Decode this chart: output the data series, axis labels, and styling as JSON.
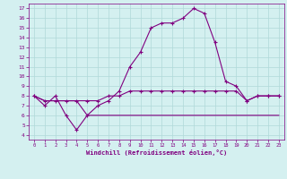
{
  "xlabel": "Windchill (Refroidissement éolien,°C)",
  "hours": [
    0,
    1,
    2,
    3,
    4,
    5,
    6,
    7,
    8,
    9,
    10,
    11,
    12,
    13,
    14,
    15,
    16,
    17,
    18,
    19,
    20,
    21,
    22,
    23
  ],
  "line1": [
    8,
    7,
    8,
    6,
    4.5,
    6,
    7,
    7.5,
    8.5,
    11,
    12.5,
    15,
    15.5,
    15.5,
    16,
    17,
    16.5,
    13.5,
    9.5,
    9,
    7.5,
    8,
    8,
    8
  ],
  "line2": [
    8,
    7.5,
    7.5,
    7.5,
    7.5,
    7.5,
    7.5,
    8,
    8,
    8.5,
    8.5,
    8.5,
    8.5,
    8.5,
    8.5,
    8.5,
    8.5,
    8.5,
    8.5,
    8.5,
    7.5,
    8,
    8,
    8
  ],
  "line3": [
    8,
    7.5,
    7.5,
    7.5,
    7.5,
    6,
    6,
    6,
    6,
    6,
    6,
    6,
    6,
    6,
    6,
    6,
    6,
    6,
    6,
    6,
    6,
    6,
    6,
    6
  ],
  "line_color": "#800080",
  "bg_color": "#d4f0f0",
  "grid_color": "#b0d8d8",
  "ylim": [
    3.5,
    17.5
  ],
  "xlim": [
    -0.5,
    23.5
  ],
  "yticks": [
    4,
    5,
    6,
    7,
    8,
    9,
    10,
    11,
    12,
    13,
    14,
    15,
    16,
    17
  ],
  "xticks": [
    0,
    1,
    2,
    3,
    4,
    5,
    6,
    7,
    8,
    9,
    10,
    11,
    12,
    13,
    14,
    15,
    16,
    17,
    18,
    19,
    20,
    21,
    22,
    23
  ]
}
